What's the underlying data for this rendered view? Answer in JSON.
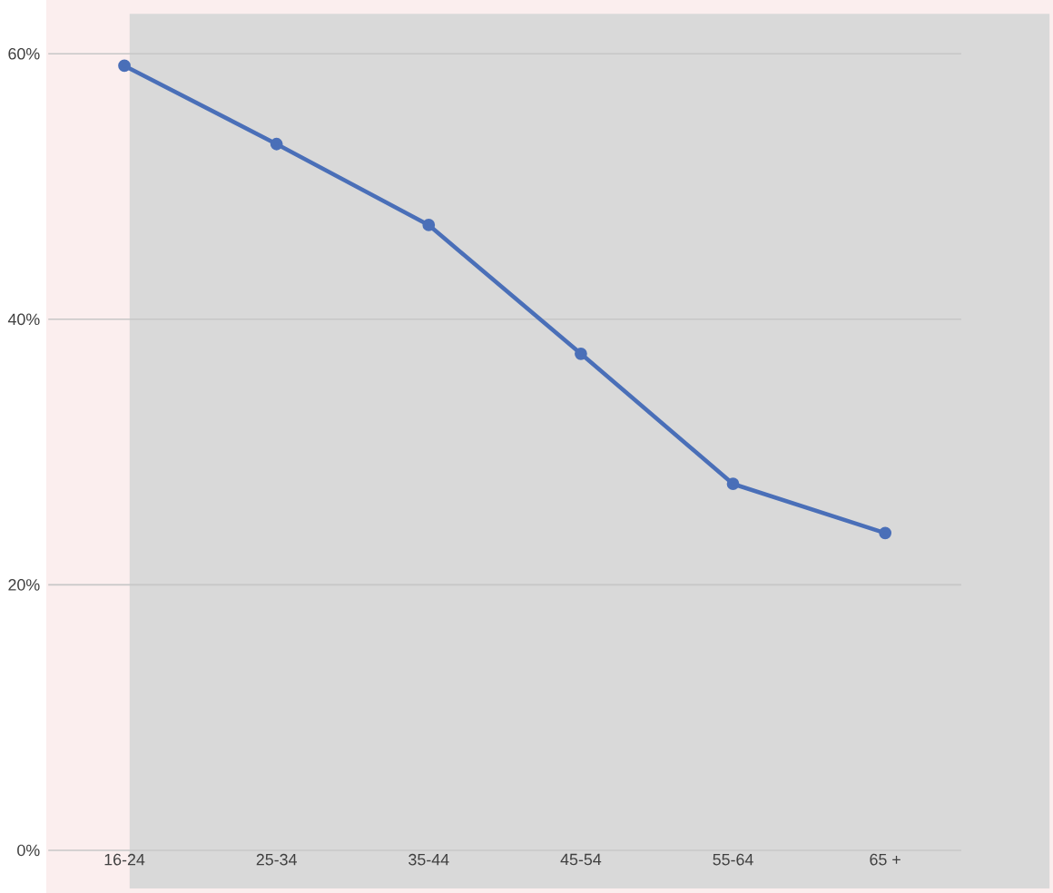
{
  "chart_data": {
    "type": "line",
    "categories": [
      "16-24",
      "25-34",
      "35-44",
      "45-54",
      "55-64",
      "65 +"
    ],
    "series": [
      {
        "color": "#4a6fb8",
        "values": [
          59.1,
          53.2,
          47.1,
          37.4,
          27.6,
          23.9
        ]
      }
    ],
    "ylim": [
      0,
      60
    ],
    "yticks": [
      {
        "value": 0,
        "label": "0%"
      },
      {
        "value": 20,
        "label": "20%"
      },
      {
        "value": 40,
        "label": "40%"
      },
      {
        "value": 60,
        "label": "60%"
      }
    ],
    "grid": "y",
    "marker": "circle",
    "line_style": "solid"
  }
}
